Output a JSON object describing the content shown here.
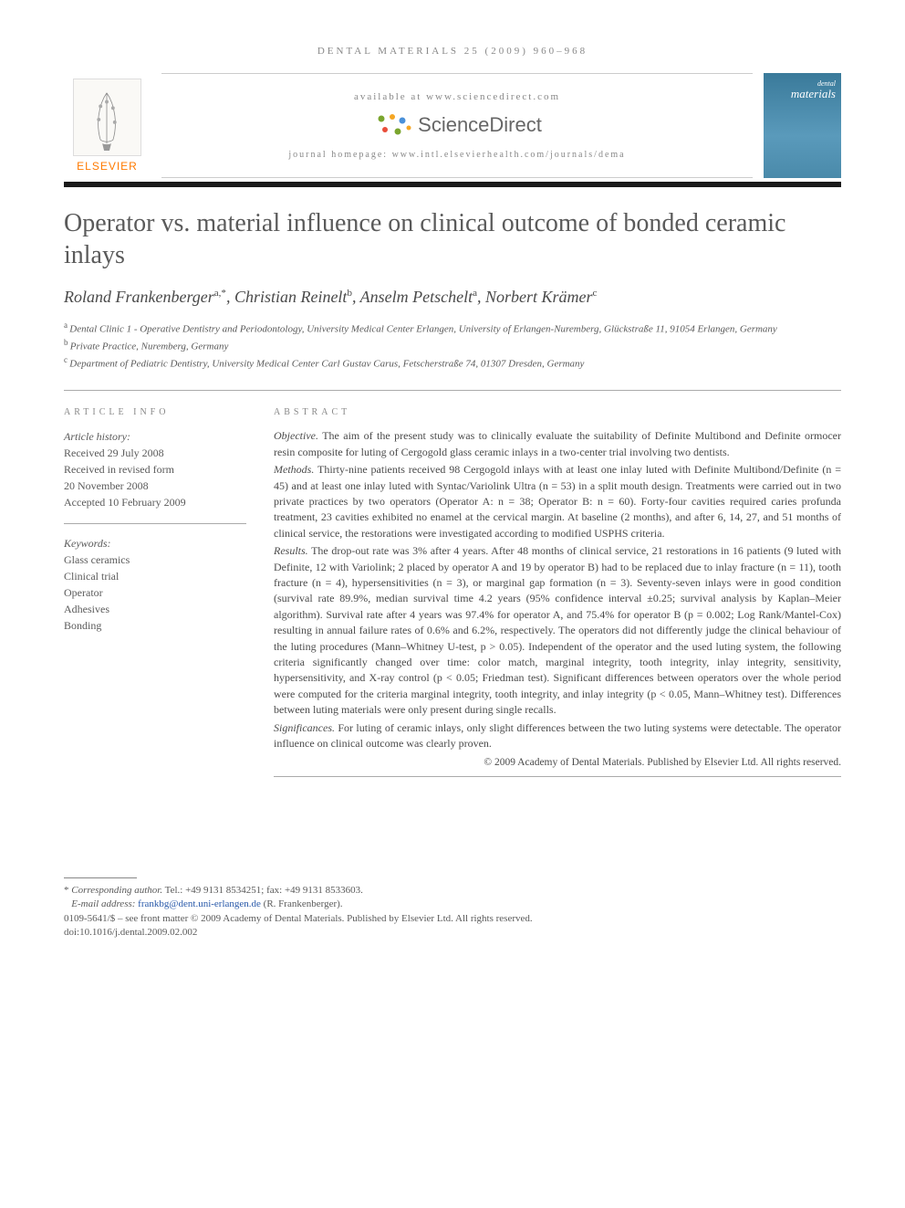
{
  "header": {
    "running_head": "DENTAL MATERIALS 25 (2009) 960–968"
  },
  "banner": {
    "available_at": "available at www.sciencedirect.com",
    "sd_name": "ScienceDirect",
    "homepage": "journal homepage: www.intl.elsevierhealth.com/journals/dema",
    "elsevier_label": "ELSEVIER",
    "journal_cover_small": "dental",
    "journal_cover_main": "materials"
  },
  "article": {
    "title": "Operator vs. material influence on clinical outcome of bonded ceramic inlays",
    "authors_html": "Roland Frankenberger",
    "authors": [
      {
        "name": "Roland Frankenberger",
        "sup": "a,*"
      },
      {
        "name": "Christian Reinelt",
        "sup": "b"
      },
      {
        "name": "Anselm Petschelt",
        "sup": "a"
      },
      {
        "name": "Norbert Krämer",
        "sup": "c"
      }
    ],
    "affiliations": [
      {
        "sup": "a",
        "text": "Dental Clinic 1 - Operative Dentistry and Periodontology, University Medical Center Erlangen, University of Erlangen-Nuremberg, Glückstraße 11, 91054 Erlangen, Germany"
      },
      {
        "sup": "b",
        "text": "Private Practice, Nuremberg, Germany"
      },
      {
        "sup": "c",
        "text": "Department of Pediatric Dentistry, University Medical Center Carl Gustav Carus, Fetscherstraße 74, 01307 Dresden, Germany"
      }
    ]
  },
  "info": {
    "label": "ARTICLE INFO",
    "history_label": "Article history:",
    "history": [
      "Received 29 July 2008",
      "Received in revised form",
      "20 November 2008",
      "Accepted 10 February 2009"
    ],
    "keywords_label": "Keywords:",
    "keywords": [
      "Glass ceramics",
      "Clinical trial",
      "Operator",
      "Adhesives",
      "Bonding"
    ]
  },
  "abstract": {
    "label": "ABSTRACT",
    "objective_head": "Objective.",
    "objective": "The aim of the present study was to clinically evaluate the suitability of Definite Multibond and Definite ormocer resin composite for luting of Cergogold glass ceramic inlays in a two-center trial involving two dentists.",
    "methods_head": "Methods.",
    "methods": "Thirty-nine patients received 98 Cergogold inlays with at least one inlay luted with Definite Multibond/Definite (n = 45) and at least one inlay luted with Syntac/Variolink Ultra (n = 53) in a split mouth design. Treatments were carried out in two private practices by two operators (Operator A: n = 38; Operator B: n = 60). Forty-four cavities required caries profunda treatment, 23 cavities exhibited no enamel at the cervical margin. At baseline (2 months), and after 6, 14, 27, and 51 months of clinical service, the restorations were investigated according to modified USPHS criteria.",
    "results_head": "Results.",
    "results": "The drop-out rate was 3% after 4 years. After 48 months of clinical service, 21 restorations in 16 patients (9 luted with Definite, 12 with Variolink; 2 placed by operator A and 19 by operator B) had to be replaced due to inlay fracture (n = 11), tooth fracture (n = 4), hypersensitivities (n = 3), or marginal gap formation (n = 3). Seventy-seven inlays were in good condition (survival rate 89.9%, median survival time 4.2 years (95% confidence interval ±0.25; survival analysis by Kaplan–Meier algorithm). Survival rate after 4 years was 97.4% for operator A, and 75.4% for operator B (p = 0.002; Log Rank/Mantel-Cox) resulting in annual failure rates of 0.6% and 6.2%, respectively. The operators did not differently judge the clinical behaviour of the luting procedures (Mann–Whitney U-test, p > 0.05). Independent of the operator and the used luting system, the following criteria significantly changed over time: color match, marginal integrity, tooth integrity, inlay integrity, sensitivity, hypersensitivity, and X-ray control (p < 0.05; Friedman test). Significant differences between operators over the whole period were computed for the criteria marginal integrity, tooth integrity, and inlay integrity (p < 0.05, Mann–Whitney test). Differences between luting materials were only present during single recalls.",
    "significances_head": "Significances.",
    "significances": "For luting of ceramic inlays, only slight differences between the two luting systems were detectable. The operator influence on clinical outcome was clearly proven.",
    "copyright": "© 2009 Academy of Dental Materials. Published by Elsevier Ltd. All rights reserved."
  },
  "footer": {
    "corr_label": "Corresponding author.",
    "corr_tel": "Tel.: +49 9131 8534251; fax: +49 9131 8533603.",
    "email_label": "E-mail address:",
    "email": "frankbg@dent.uni-erlangen.de",
    "email_name": "(R. Frankenberger).",
    "issn_line": "0109-5641/$ – see front matter © 2009 Academy of Dental Materials. Published by Elsevier Ltd. All rights reserved.",
    "doi": "doi:10.1016/j.dental.2009.02.002"
  }
}
